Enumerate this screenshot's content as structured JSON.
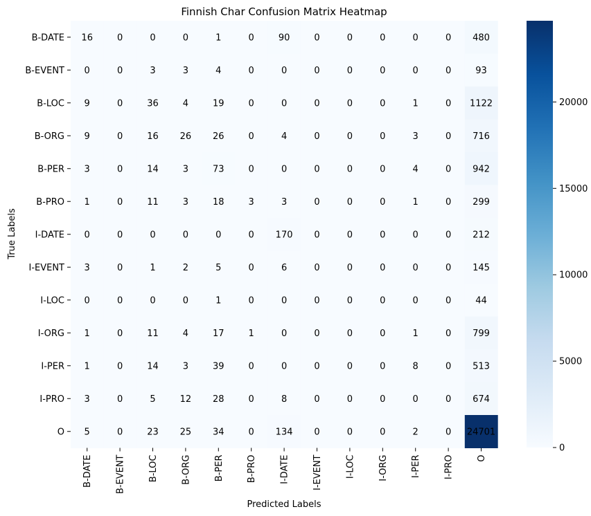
{
  "chart_data": {
    "type": "heatmap",
    "title": "Finnish Char Confusion Matrix Heatmap",
    "xlabel": "Predicted Labels",
    "ylabel": "True Labels",
    "colormap": "Blues",
    "color_min": 0,
    "color_max": 24701,
    "x_categories": [
      "B-DATE",
      "B-EVENT",
      "B-LOC",
      "B-ORG",
      "B-PER",
      "B-PRO",
      "I-DATE",
      "I-EVENT",
      "I-LOC",
      "I-ORG",
      "I-PER",
      "I-PRO",
      "O"
    ],
    "y_categories": [
      "B-DATE",
      "B-EVENT",
      "B-LOC",
      "B-ORG",
      "B-PER",
      "B-PRO",
      "I-DATE",
      "I-EVENT",
      "I-LOC",
      "I-ORG",
      "I-PER",
      "I-PRO",
      "O"
    ],
    "values": [
      [
        16,
        0,
        0,
        0,
        1,
        0,
        90,
        0,
        0,
        0,
        0,
        0,
        480
      ],
      [
        0,
        0,
        3,
        3,
        4,
        0,
        0,
        0,
        0,
        0,
        0,
        0,
        93
      ],
      [
        9,
        0,
        36,
        4,
        19,
        0,
        0,
        0,
        0,
        0,
        1,
        0,
        1122
      ],
      [
        9,
        0,
        16,
        26,
        26,
        0,
        4,
        0,
        0,
        0,
        3,
        0,
        716
      ],
      [
        3,
        0,
        14,
        3,
        73,
        0,
        0,
        0,
        0,
        0,
        4,
        0,
        942
      ],
      [
        1,
        0,
        11,
        3,
        18,
        3,
        3,
        0,
        0,
        0,
        1,
        0,
        299
      ],
      [
        0,
        0,
        0,
        0,
        0,
        0,
        170,
        0,
        0,
        0,
        0,
        0,
        212
      ],
      [
        3,
        0,
        1,
        2,
        5,
        0,
        6,
        0,
        0,
        0,
        0,
        0,
        145
      ],
      [
        0,
        0,
        0,
        0,
        1,
        0,
        0,
        0,
        0,
        0,
        0,
        0,
        44
      ],
      [
        1,
        0,
        11,
        4,
        17,
        1,
        0,
        0,
        0,
        0,
        1,
        0,
        799
      ],
      [
        1,
        0,
        14,
        3,
        39,
        0,
        0,
        0,
        0,
        0,
        8,
        0,
        513
      ],
      [
        3,
        0,
        5,
        12,
        28,
        0,
        8,
        0,
        0,
        0,
        0,
        0,
        674
      ],
      [
        5,
        0,
        23,
        25,
        34,
        0,
        134,
        0,
        0,
        0,
        2,
        0,
        24701
      ]
    ],
    "colorbar_ticks": [
      0,
      5000,
      10000,
      15000,
      20000
    ]
  }
}
